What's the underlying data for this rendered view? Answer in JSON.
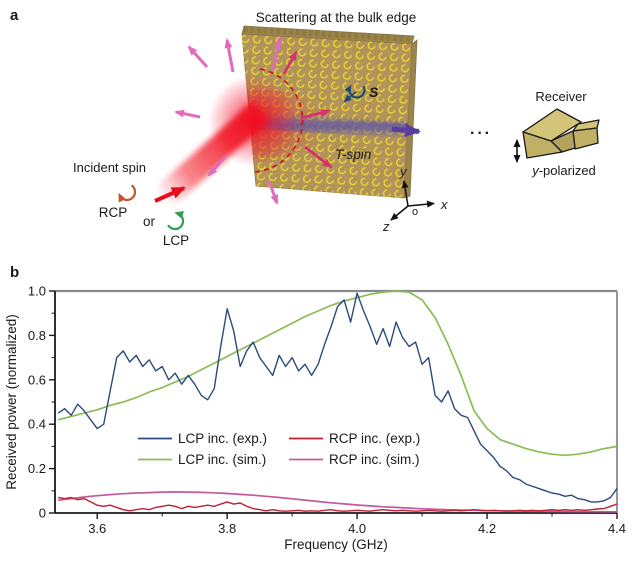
{
  "figure": {
    "panel_a": {
      "label": "a",
      "title": "Scattering at the bulk edge",
      "incident_spin": "Incident spin",
      "rcp": "RCP",
      "or": "or",
      "lcp": "LCP",
      "t_spin": "T-spin",
      "s": "S",
      "dots": "···",
      "receiver": "Receiver",
      "polarized_prefix": "y",
      "polarized_rest": "-polarized",
      "axes": {
        "x": "x",
        "y": "y",
        "z": "z",
        "origin": "o"
      },
      "colors": {
        "rcp": "#c2562b",
        "lcp": "#2f9e4d",
        "lattice": "#b2945a",
        "rings": "#ead72e",
        "beam": "#f01a26",
        "scatter_pink": "#e06cbe",
        "scatter_crimson": "#d4336c",
        "t_spin_arrow": "#5b3f9e",
        "t_spin_text": "#8a58ae",
        "spin_s": "#1d4a70",
        "horn": "#c9ba6e"
      }
    },
    "panel_b": {
      "label": "b"
    }
  },
  "chart_data": {
    "type": "line",
    "title": "",
    "xlabel": "Frequency (GHz)",
    "ylabel": "Received power (normalized)",
    "xlim": [
      3.535,
      4.4
    ],
    "ylim": [
      0,
      1
    ],
    "xticks": {
      "values": [
        3.6,
        3.8,
        4.0,
        4.2,
        4.4
      ],
      "labels": [
        "3.6",
        "3.8",
        "4.0",
        "4.2",
        "4.4"
      ]
    },
    "xminor": [
      3.7,
      3.9,
      4.1,
      4.3
    ],
    "yticks": {
      "values": [
        0,
        0.2,
        0.4,
        0.6,
        0.8,
        1.0
      ],
      "labels": [
        "0",
        "0.2",
        "0.4",
        "0.6",
        "0.8",
        "1.0"
      ]
    },
    "yminor": [
      0.1,
      0.3,
      0.5,
      0.7,
      0.9
    ],
    "grid": false,
    "legend_position": "center",
    "series": [
      {
        "name": "LCP inc. (exp.)",
        "color": "#2b4a7d",
        "x_start": 3.54,
        "x_step": 0.01,
        "y": [
          0.45,
          0.47,
          0.44,
          0.49,
          0.46,
          0.42,
          0.38,
          0.4,
          0.55,
          0.7,
          0.73,
          0.68,
          0.71,
          0.66,
          0.69,
          0.64,
          0.66,
          0.6,
          0.63,
          0.58,
          0.62,
          0.58,
          0.53,
          0.51,
          0.56,
          0.75,
          0.92,
          0.82,
          0.66,
          0.73,
          0.77,
          0.7,
          0.66,
          0.62,
          0.71,
          0.66,
          0.7,
          0.64,
          0.67,
          0.62,
          0.67,
          0.76,
          0.84,
          0.93,
          0.96,
          0.86,
          0.99,
          0.91,
          0.84,
          0.76,
          0.83,
          0.75,
          0.86,
          0.79,
          0.75,
          0.77,
          0.67,
          0.7,
          0.53,
          0.5,
          0.55,
          0.47,
          0.44,
          0.43,
          0.37,
          0.31,
          0.28,
          0.25,
          0.21,
          0.19,
          0.16,
          0.15,
          0.13,
          0.12,
          0.11,
          0.1,
          0.09,
          0.085,
          0.075,
          0.08,
          0.065,
          0.06,
          0.05,
          0.05,
          0.055,
          0.07,
          0.11
        ]
      },
      {
        "name": "LCP inc. (sim.)",
        "color": "#8cbb55",
        "x_start": 3.54,
        "x_step": 0.02,
        "y": [
          0.42,
          0.435,
          0.45,
          0.465,
          0.485,
          0.5,
          0.52,
          0.545,
          0.565,
          0.59,
          0.615,
          0.645,
          0.675,
          0.705,
          0.735,
          0.765,
          0.795,
          0.825,
          0.855,
          0.885,
          0.91,
          0.935,
          0.955,
          0.97,
          0.985,
          0.995,
          1.0,
          0.995,
          0.96,
          0.88,
          0.76,
          0.62,
          0.46,
          0.38,
          0.33,
          0.31,
          0.29,
          0.275,
          0.265,
          0.26,
          0.265,
          0.275,
          0.29,
          0.3
        ]
      },
      {
        "name": "RCP inc. (exp.)",
        "color": "#c41e33",
        "x_start": 3.54,
        "x_step": 0.01,
        "y": [
          0.07,
          0.065,
          0.07,
          0.06,
          0.065,
          0.05,
          0.035,
          0.03,
          0.035,
          0.025,
          0.015,
          0.01,
          0.015,
          0.02,
          0.015,
          0.025,
          0.03,
          0.035,
          0.03,
          0.02,
          0.03,
          0.025,
          0.03,
          0.035,
          0.03,
          0.04,
          0.05,
          0.04,
          0.045,
          0.03,
          0.02,
          0.015,
          0.01,
          0.015,
          0.01,
          0.008,
          0.01,
          0.012,
          0.008,
          0.01,
          0.008,
          0.012,
          0.015,
          0.01,
          0.008,
          0.01,
          0.012,
          0.01,
          0.008,
          0.012,
          0.015,
          0.012,
          0.01,
          0.012,
          0.01,
          0.008,
          0.01,
          0.012,
          0.01,
          0.008,
          0.01,
          0.012,
          0.01,
          0.012,
          0.015,
          0.012,
          0.01,
          0.012,
          0.01,
          0.008,
          0.01,
          0.012,
          0.01,
          0.012,
          0.01,
          0.012,
          0.015,
          0.012,
          0.015,
          0.012,
          0.015,
          0.012,
          0.015,
          0.018,
          0.02,
          0.03,
          0.04
        ]
      },
      {
        "name": "RCP inc. (sim.)",
        "color": "#c25a9e",
        "x_start": 3.54,
        "x_step": 0.02,
        "y": [
          0.058,
          0.065,
          0.072,
          0.078,
          0.083,
          0.087,
          0.09,
          0.092,
          0.094,
          0.095,
          0.094,
          0.093,
          0.091,
          0.088,
          0.084,
          0.08,
          0.075,
          0.07,
          0.064,
          0.058,
          0.052,
          0.046,
          0.041,
          0.036,
          0.032,
          0.028,
          0.025,
          0.022,
          0.019,
          0.017,
          0.015,
          0.013,
          0.012,
          0.011,
          0.01,
          0.009,
          0.008,
          0.0075,
          0.007,
          0.0065,
          0.006,
          0.006,
          0.0055,
          0.005
        ]
      }
    ]
  }
}
